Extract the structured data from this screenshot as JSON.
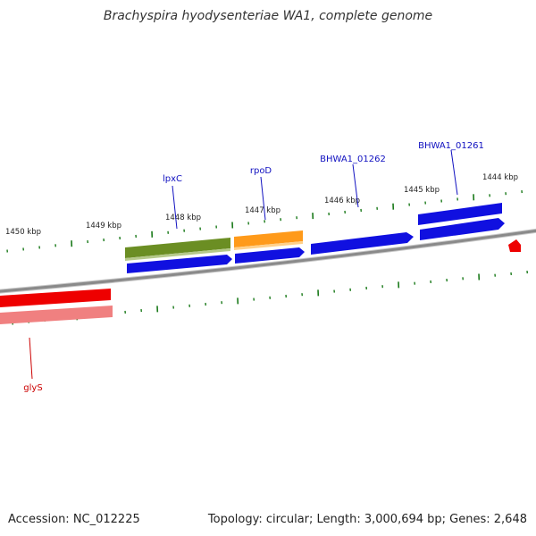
{
  "title": "Brachyspira hyodysenteriae WA1, complete genome",
  "footer": {
    "accession": "Accession: NC_012225",
    "summary": "Topology: circular; Length: 3,000,694 bp; Genes: 2,648"
  },
  "colors": {
    "backbone": "#8a8a8a",
    "tick": "#1a7a1a",
    "cds": "#1010e0",
    "label_blue": "#1010c0",
    "label_red": "#cc0000",
    "lpxC": "#6b8e23",
    "rpoD": "#ff9a1a",
    "glyS": "#ee0000",
    "glyS_light": "#f08080"
  },
  "ticks": [
    {
      "label": "1450 kbp"
    },
    {
      "label": "1449 kbp"
    },
    {
      "label": "1448 kbp"
    },
    {
      "label": "1447 kbp"
    },
    {
      "label": "1446 kbp"
    },
    {
      "label": "1445 kbp"
    },
    {
      "label": "1444 kbp"
    }
  ],
  "genes": [
    {
      "name": "lpxC"
    },
    {
      "name": "rpoD"
    },
    {
      "name": "BHWA1_01262"
    },
    {
      "name": "BHWA1_01261"
    },
    {
      "name": "glyS"
    }
  ]
}
